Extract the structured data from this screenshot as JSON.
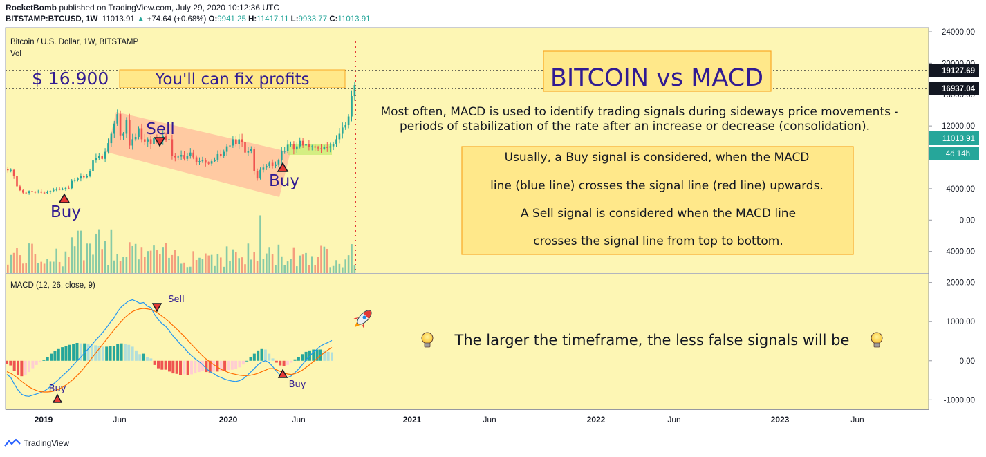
{
  "header": {
    "author": "RocketBomb",
    "published": "published on TradingView.com, July 29, 2020 10:12:36 UTC",
    "symbol": "BITSTAMP:BTCUSD, 1W",
    "last": "11013.91",
    "change": "+74.64 (+0.68%)",
    "o_label": "O:",
    "o": "9941.25",
    "h_label": "H:",
    "h": "11417.11",
    "l_label": "L:",
    "l": "9933.77",
    "c_label": "C:",
    "c": "11013.91"
  },
  "pane_labels": {
    "main": "Bitcoin / U.S. Dollar, 1W, BITSTAMP",
    "vol": "Vol",
    "macd": "MACD (12, 26, close, 9)"
  },
  "annotations": {
    "price_target": "$ 16.900",
    "fix_profits": "You'll can fix profits",
    "title": "BITCOIN vs MACD",
    "desc_line1": "Most often, MACD is used to identify trading signals during sideways price movements -",
    "desc_line2": "periods of stabilization of the rate after an increase or decrease (consolidation).",
    "box_line1": "Usually, a Buy signal is considered, when the MACD",
    "box_line2": "line (blue line) crosses the signal line (red line) upwards.",
    "box_line3": "A Sell signal is considered when the MACD line",
    "box_line4": "crosses the signal line from top to bottom.",
    "timeframe_note": "The larger the timeframe, the less false signals will be",
    "buy": "Buy",
    "sell": "Sell"
  },
  "price_tags": {
    "level1": "19127.69",
    "level2": "16937.04",
    "last": "11013.91",
    "countdown": "4d 14h"
  },
  "footer": {
    "brand": "TradingView"
  },
  "colors": {
    "background": "#fdf6b4",
    "up": "#26a69a",
    "down": "#ef5350",
    "macd_line": "#2196f3",
    "signal_line": "#ff6d00",
    "annotation_text": "#311b92",
    "box_fill": "#ffe88a",
    "box_border": "#f9a825",
    "channel": "#ffb89a"
  },
  "chart_data": [
    {
      "type": "candlestick",
      "title": "Bitcoin / U.S. Dollar, 1W, BITSTAMP",
      "y_ticks": [
        "24000.00",
        "20000.00",
        "16000.00",
        "12000.00",
        "8000.00",
        "4000.00",
        "0.00",
        "-4000.00"
      ],
      "ylim": [
        -5000,
        24000
      ],
      "x_ticks": [
        "2019",
        "Jun",
        "2020",
        "Jun",
        "2021",
        "Jun",
        "2022",
        "Jun",
        "2023",
        "Jun"
      ],
      "weekly_close": [
        6350,
        6400,
        5600,
        4300,
        3800,
        3500,
        3450,
        3700,
        3600,
        3550,
        3650,
        3500,
        3450,
        3550,
        3700,
        3850,
        3950,
        3900,
        3950,
        4100,
        4050,
        5000,
        5100,
        5300,
        5600,
        5450,
        5650,
        6200,
        7600,
        7900,
        8150,
        7800,
        8700,
        9800,
        11000,
        12300,
        13500,
        10800,
        11000,
        12800,
        9500,
        10300,
        10600,
        11700,
        10300,
        10000,
        10300,
        9700,
        10500,
        10200,
        10100,
        10700,
        10200,
        10300,
        8200,
        8000,
        8100,
        8300,
        7800,
        8200,
        8600,
        8000,
        7400,
        7500,
        7600,
        7300,
        7200,
        7500,
        7700,
        8400,
        8200,
        8700,
        9400,
        9500,
        10300,
        9700,
        10300,
        9900,
        8600,
        8800,
        9100,
        6200,
        5300,
        6400,
        6700,
        6900,
        7300,
        6900,
        7100,
        7600,
        8800,
        8800,
        9600,
        9700,
        9000,
        9400,
        10100,
        9500,
        9650,
        9300,
        9400,
        9250,
        9150,
        9100,
        9300,
        9250,
        9400,
        9650,
        10300,
        11000,
        11800,
        12100,
        13200,
        15800,
        17200
      ],
      "annotations": [
        "$ 16.900",
        "You'll can fix profits",
        "Buy",
        "Sell"
      ],
      "labels": [
        "19127.69",
        "16937.04",
        "11013.91",
        "4d 14h"
      ]
    },
    {
      "type": "bar",
      "title": "MACD (12, 26, close, 9)",
      "y_ticks": [
        "2000.00",
        "1000.00",
        "0.00",
        "-1000.00"
      ],
      "ylim": [
        -1100,
        2100
      ],
      "series": [
        {
          "name": "MACD",
          "values": [
            -350,
            -420,
            -600,
            -750,
            -860,
            -900,
            -910,
            -880,
            -850,
            -820,
            -780,
            -720,
            -640,
            -560,
            -480,
            -390,
            -300,
            -210,
            -110,
            0,
            90,
            200,
            300,
            410,
            520,
            620,
            730,
            850,
            980,
            1100,
            1260,
            1380,
            1460,
            1530,
            1560,
            1520,
            1470,
            1490,
            1400,
            1360,
            1180,
            1050,
            950,
            880,
            760,
            630,
            530,
            420,
            330,
            220,
            130,
            50,
            -20,
            -100,
            -200,
            -280,
            -330,
            -390,
            -430,
            -470,
            -500,
            -520,
            -530,
            -510,
            -460,
            -380,
            -290,
            -200,
            -100,
            -30,
            0,
            -50,
            -150,
            -270,
            -370,
            -420,
            -430,
            -390,
            -300,
            -210,
            -100,
            20,
            120,
            220,
            300,
            380,
            430,
            470,
            520
          ]
        },
        {
          "name": "Signal",
          "values": [
            -280,
            -320,
            -380,
            -450,
            -530,
            -600,
            -670,
            -720,
            -760,
            -790,
            -800,
            -800,
            -790,
            -770,
            -730,
            -680,
            -620,
            -550,
            -470,
            -380,
            -280,
            -170,
            -50,
            70,
            190,
            310,
            430,
            550,
            670,
            790,
            900,
            1010,
            1110,
            1190,
            1260,
            1300,
            1330,
            1340,
            1330,
            1310,
            1270,
            1210,
            1140,
            1070,
            990,
            900,
            810,
            720,
            620,
            520,
            420,
            320,
            220,
            120,
            40,
            -30,
            -100,
            -160,
            -220,
            -260,
            -300,
            -330,
            -350,
            -370,
            -380,
            -380,
            -370,
            -350,
            -320,
            -280,
            -240,
            -200,
            -200,
            -230,
            -270,
            -310,
            -340,
            -350,
            -330,
            -290,
            -240,
            -170,
            -100,
            -20,
            60,
            140,
            210,
            280,
            340
          ]
        }
      ],
      "annotations": [
        "Buy",
        "Sell",
        "Buy"
      ]
    }
  ]
}
